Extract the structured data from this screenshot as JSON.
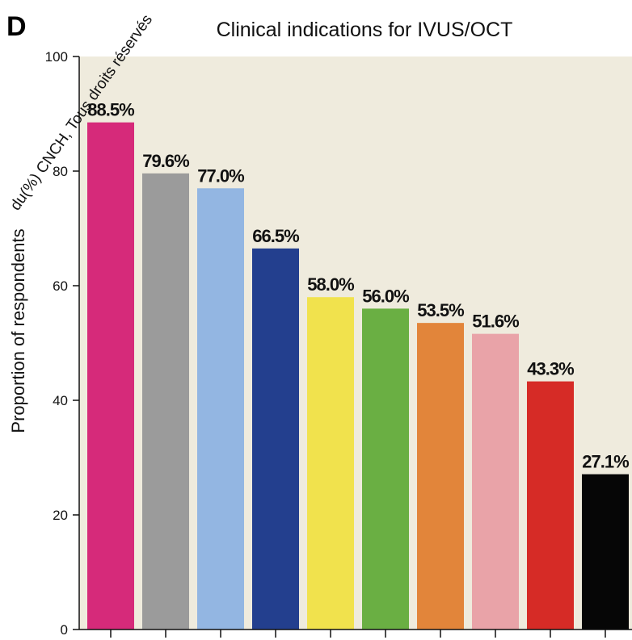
{
  "panel_letter": "D",
  "watermark": "du(%) CNCH, Tous droits réservés",
  "chart_data": {
    "type": "bar",
    "title": "Clinical indications for IVUS/OCT",
    "xlabel": "",
    "ylabel": "Proportion of respondents",
    "ylim": [
      0,
      100
    ],
    "yticks": [
      0,
      20,
      40,
      60,
      80,
      100
    ],
    "grid": false,
    "plot_background": "#efebdd",
    "values": [
      88.5,
      79.6,
      77.0,
      66.5,
      58.0,
      56.0,
      53.5,
      51.6,
      43.3,
      27.1
    ],
    "data_labels": [
      "88.5%",
      "79.6%",
      "77.0%",
      "66.5%",
      "58.0%",
      "56.0%",
      "53.5%",
      "51.6%",
      "43.3%",
      "27.1%"
    ],
    "colors": [
      "#d62a7a",
      "#9b9b9b",
      "#93b6e2",
      "#233f8e",
      "#f1e24d",
      "#6aaf43",
      "#e2853a",
      "#e9a3a8",
      "#d62b26",
      "#060606"
    ]
  }
}
